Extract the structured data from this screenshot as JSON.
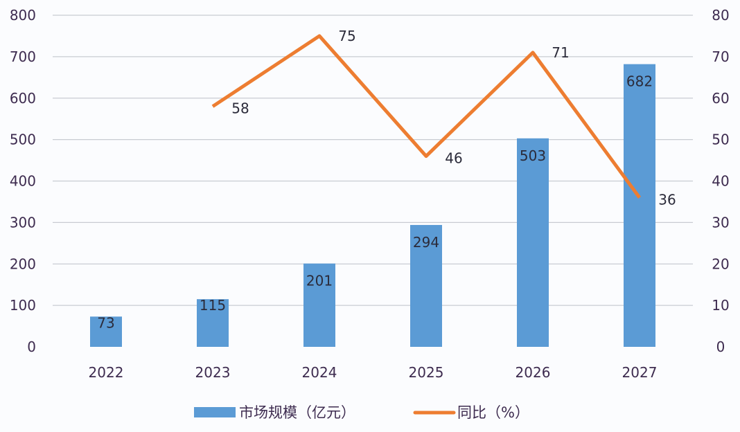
{
  "chart_data": {
    "type": "bar+line",
    "categories": [
      "2022",
      "2023",
      "2024",
      "2025",
      "2026",
      "2027"
    ],
    "series": [
      {
        "name": "市场规模（亿元）",
        "type": "bar",
        "axis": "left",
        "values": [
          73,
          115,
          201,
          294,
          503,
          682
        ],
        "color": "#5b9bd5"
      },
      {
        "name": "同比（%）",
        "type": "line",
        "axis": "right",
        "values": [
          null,
          58,
          75,
          46,
          71,
          36
        ],
        "color": "#ed7d31"
      }
    ],
    "y_left": {
      "lim": [
        0,
        800
      ],
      "ticks": [
        0,
        100,
        200,
        300,
        400,
        500,
        600,
        700,
        800
      ]
    },
    "y_right": {
      "lim": [
        0,
        80
      ],
      "ticks": [
        0,
        10,
        20,
        30,
        40,
        50,
        60,
        70,
        80
      ]
    },
    "grid": true,
    "legend": "bottom",
    "colors": {
      "text": "#3d2b4f",
      "grid": "#c8cbd2",
      "background": "#fbfcfe"
    }
  }
}
